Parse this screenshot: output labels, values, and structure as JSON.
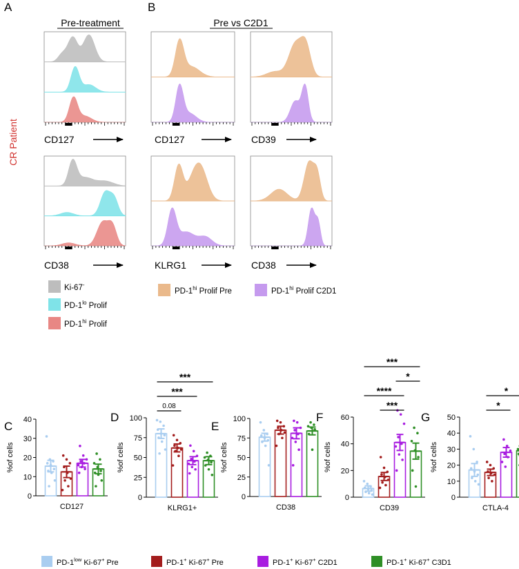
{
  "panels": {
    "a": "A",
    "b": "B",
    "c": "C",
    "d": "D",
    "e": "E",
    "f": "F",
    "g": "G"
  },
  "headers": {
    "pre_treatment": "Pre-treatment",
    "pre_vs_c2d1": "Pre vs C2D1"
  },
  "side_label": "CR Patient",
  "histogram_axes": {
    "a_top": "CD127",
    "a_bottom": "CD38",
    "b_top_left": "CD127",
    "b_top_right": "CD39",
    "b_bottom_left": "KLRG1",
    "b_bottom_right": "CD38"
  },
  "legend_a": [
    {
      "base": "Ki-67",
      "sup": "-",
      "tail": "",
      "color": "#bdbdbd"
    },
    {
      "base": "PD-1",
      "sup": "lo",
      "tail": " Prolif",
      "color": "#7fe3e8"
    },
    {
      "base": "PD-1",
      "sup": "hi",
      "tail": " Prolif",
      "color": "#e88784"
    }
  ],
  "legend_b": [
    {
      "base": "PD-1",
      "sup": "hi",
      "tail": " Prolif Pre",
      "color": "#eab98b"
    },
    {
      "base": "PD-1",
      "sup": "hi",
      "tail": " Prolif C2D1",
      "color": "#c59aee"
    }
  ],
  "bottom_legend": [
    {
      "p1": "PD-1",
      "s1": "low",
      "p2": " Ki-67",
      "s2": "+",
      "p3": " Pre",
      "color": "#a9cdf0"
    },
    {
      "p1": "PD-1",
      "s1": "+",
      "p2": " Ki-67",
      "s2": "+",
      "p3": " Pre",
      "color": "#a31d1d"
    },
    {
      "p1": "PD-1",
      "s1": "+",
      "p2": " Ki-67",
      "s2": "+",
      "p3": " C2D1",
      "color": "#a81de0"
    },
    {
      "p1": "PD-1",
      "s1": "+",
      "p2": " Ki-67",
      "s2": "+",
      "p3": " C3D1",
      "color": "#2f8f26"
    }
  ],
  "colors": {
    "ki67neg": "#bdbdbd",
    "pd1lo": "#7fe3e8",
    "pd1hi": "#e88784",
    "pre_orange": "#eab98b",
    "c2d1_purple": "#c59aee",
    "series": [
      "#a9cdf0",
      "#a31d1d",
      "#a81de0",
      "#2f8f26"
    ]
  },
  "chart_data": [
    {
      "type": "bar",
      "panel": "C",
      "xlabel": "CD127",
      "ylabel": "%of cells",
      "ylim": [
        0,
        40
      ],
      "yticks": [
        0,
        10,
        20,
        30,
        40
      ],
      "categories": [
        "PD-1low Ki-67+ Pre",
        "PD-1+ Ki-67+ Pre",
        "PD-1+ Ki-67+ C2D1",
        "PD-1+ Ki-67+ C3D1"
      ],
      "values": [
        15.5,
        12.5,
        17,
        14
      ],
      "errors": [
        3,
        3,
        2,
        2.5
      ],
      "points": [
        [
          31,
          19,
          18,
          17,
          16,
          14,
          13,
          12,
          8,
          5
        ],
        [
          21,
          19,
          17,
          15,
          12,
          9,
          8,
          5,
          3
        ],
        [
          26,
          21,
          19,
          18,
          17,
          16,
          15,
          14,
          12
        ],
        [
          22,
          19,
          17,
          15,
          13,
          12,
          11,
          8,
          5
        ]
      ],
      "annotations": []
    },
    {
      "type": "bar",
      "panel": "D",
      "xlabel": "KLRG1+",
      "ylabel": "%of cells",
      "ylim": [
        0,
        100
      ],
      "yticks": [
        0,
        25,
        50,
        75,
        100
      ],
      "categories": [
        "PD-1low Ki-67+ Pre",
        "PD-1+ Ki-67+ Pre",
        "PD-1+ Ki-67+ C2D1",
        "PD-1+ Ki-67+ C3D1"
      ],
      "values": [
        80,
        62,
        46,
        46
      ],
      "errors": [
        6,
        5,
        5,
        5
      ],
      "points": [
        [
          97,
          95,
          90,
          85,
          80,
          78,
          75,
          70,
          60,
          55
        ],
        [
          78,
          72,
          68,
          65,
          62,
          60,
          58,
          52,
          40
        ],
        [
          65,
          58,
          52,
          48,
          45,
          42,
          38,
          35,
          30
        ],
        [
          56,
          52,
          50,
          47,
          44,
          40,
          35,
          28
        ]
      ],
      "annotations": [
        {
          "groups": [
            0,
            1
          ],
          "label": "0.08",
          "level": 1
        },
        {
          "groups": [
            0,
            2
          ],
          "label": "***",
          "level": 2
        },
        {
          "groups": [
            0,
            3
          ],
          "label": "***",
          "level": 3
        }
      ]
    },
    {
      "type": "bar",
      "panel": "E",
      "xlabel": "CD38",
      "ylabel": "%of cells",
      "ylim": [
        0,
        100
      ],
      "yticks": [
        0,
        25,
        50,
        75,
        100
      ],
      "categories": [
        "PD-1low Ki-67+ Pre",
        "PD-1+ Ki-67+ Pre",
        "PD-1+ Ki-67+ C2D1",
        "PD-1+ Ki-67+ C3D1"
      ],
      "values": [
        76,
        85,
        81,
        84
      ],
      "errors": [
        5,
        5,
        7,
        5
      ],
      "points": [
        [
          95,
          85,
          80,
          78,
          75,
          72,
          70,
          65,
          40
        ],
        [
          97,
          95,
          90,
          88,
          85,
          82,
          80,
          75,
          65
        ],
        [
          97,
          95,
          88,
          85,
          80,
          75,
          70,
          60,
          40
        ],
        [
          95,
          92,
          90,
          88,
          86,
          80,
          60
        ]
      ],
      "annotations": []
    },
    {
      "type": "bar",
      "panel": "F",
      "xlabel": "CD39",
      "ylabel": "%of cells",
      "ylim": [
        0,
        60
      ],
      "yticks": [
        0,
        20,
        40,
        60
      ],
      "categories": [
        "PD-1low Ki-67+ Pre",
        "PD-1+ Ki-67+ Pre",
        "PD-1+ Ki-67+ C2D1",
        "PD-1+ Ki-67+ C3D1"
      ],
      "values": [
        6.5,
        15.5,
        41,
        34.5
      ],
      "errors": [
        2,
        3,
        6,
        6
      ],
      "points": [
        [
          12,
          10,
          8,
          7,
          6,
          5,
          4,
          3,
          2
        ],
        [
          30,
          22,
          19,
          17,
          15,
          13,
          11,
          9,
          7
        ],
        [
          65,
          62,
          55,
          45,
          40,
          38,
          32,
          28,
          20
        ],
        [
          52,
          48,
          42,
          35,
          30,
          20,
          8
        ]
      ],
      "annotations": [
        {
          "groups": [
            1,
            2
          ],
          "label": "***",
          "level": 1
        },
        {
          "groups": [
            0,
            2
          ],
          "label": "****",
          "level": 2
        },
        {
          "groups": [
            2,
            3
          ],
          "label": "*",
          "level": 3
        },
        {
          "groups": [
            0,
            3
          ],
          "label": "***",
          "level": 4
        }
      ]
    },
    {
      "type": "bar",
      "panel": "G",
      "xlabel": "CTLA-4",
      "ylabel": "%of cells",
      "ylim": [
        0,
        50
      ],
      "yticks": [
        0,
        10,
        20,
        30,
        40,
        50
      ],
      "categories": [
        "PD-1low Ki-67+ Pre",
        "PD-1+ Ki-67+ Pre",
        "PD-1+ Ki-67+ C2D1",
        "PD-1+ Ki-67+ C3D1"
      ],
      "values": [
        17,
        15.5,
        28,
        29
      ],
      "errors": [
        4,
        2,
        3,
        3
      ],
      "points": [
        [
          38,
          30,
          22,
          18,
          16,
          14,
          12,
          10,
          8
        ],
        [
          22,
          20,
          18,
          16,
          15,
          14,
          12,
          10
        ],
        [
          36,
          32,
          29,
          27,
          25,
          22,
          19
        ],
        [
          32,
          31,
          30,
          29,
          28,
          27,
          26,
          25,
          20
        ]
      ],
      "annotations": [
        {
          "groups": [
            1,
            2
          ],
          "label": "*",
          "level": 1
        },
        {
          "groups": [
            1,
            3
          ],
          "label": "*",
          "level": 2
        }
      ]
    }
  ]
}
